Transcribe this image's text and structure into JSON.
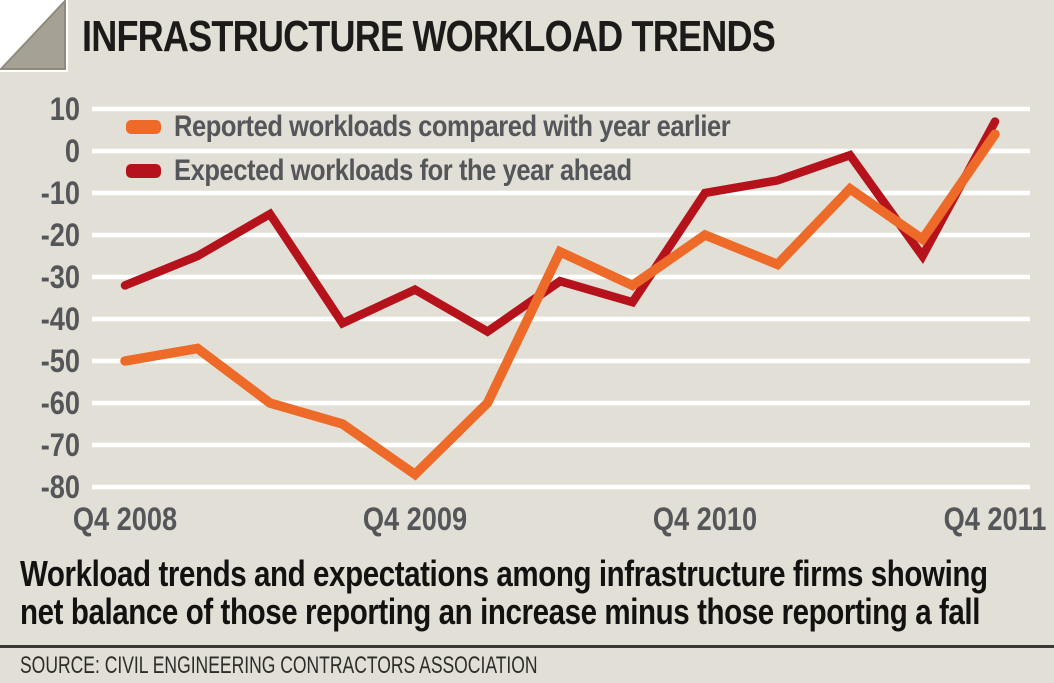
{
  "header": {
    "title": "INFRASTRUCTURE WORKLOAD TRENDS"
  },
  "legend": [
    {
      "label": "Reported workloads compared with year earlier",
      "color": "#ed6a28"
    },
    {
      "label": "Expected workloads for the year ahead",
      "color": "#b5121b"
    }
  ],
  "chart_data": {
    "type": "line",
    "title": "INFRASTRUCTURE WORKLOAD TRENDS",
    "categories": [
      "Q4 2008",
      "Q1 2009",
      "Q2 2009",
      "Q3 2009",
      "Q4 2009",
      "Q1 2010",
      "Q2 2010",
      "Q3 2010",
      "Q4 2010",
      "Q1 2011",
      "Q2 2011",
      "Q3 2011",
      "Q4 2011"
    ],
    "x_axis_tick_labels": [
      "Q4 2008",
      "Q4 2009",
      "Q4 2010",
      "Q4 2011"
    ],
    "y_ticks": [
      10,
      0,
      -10,
      -20,
      -30,
      -40,
      -50,
      -60,
      -70,
      -80
    ],
    "ylim": [
      -80,
      10
    ],
    "grid": "horizontal-white-lines",
    "legend_position": "top-left-inside",
    "series": [
      {
        "name": "Reported workloads compared with year earlier",
        "color": "#ed6a28",
        "values": [
          -50,
          -47,
          -60,
          -65,
          -77,
          -60,
          -24,
          -32,
          -20,
          -27,
          -9,
          -21,
          4
        ]
      },
      {
        "name": "Expected workloads for the year ahead",
        "color": "#b5121b",
        "values": [
          -32,
          -25,
          -15,
          -41,
          -33,
          -43,
          -31,
          -36,
          -10,
          -7,
          -1,
          -25,
          7
        ]
      }
    ]
  },
  "caption": {
    "line1": "Workload trends and expectations among infrastructure firms showing",
    "line2": "net balance of those reporting an increase minus those reporting a fall"
  },
  "source": "SOURCE: CIVIL ENGINEERING CONTRACTORS ASSOCIATION",
  "colors": {
    "background": "#e2e0d6",
    "gridline": "#ffffff",
    "reported_line": "#ed6a28",
    "expected_line": "#b5121b",
    "axis_text": "#55565a",
    "title_text": "#1d1a1a",
    "caption_text": "#141211",
    "corner_triangle": "#a5a295",
    "divider": "#3b3938"
  }
}
